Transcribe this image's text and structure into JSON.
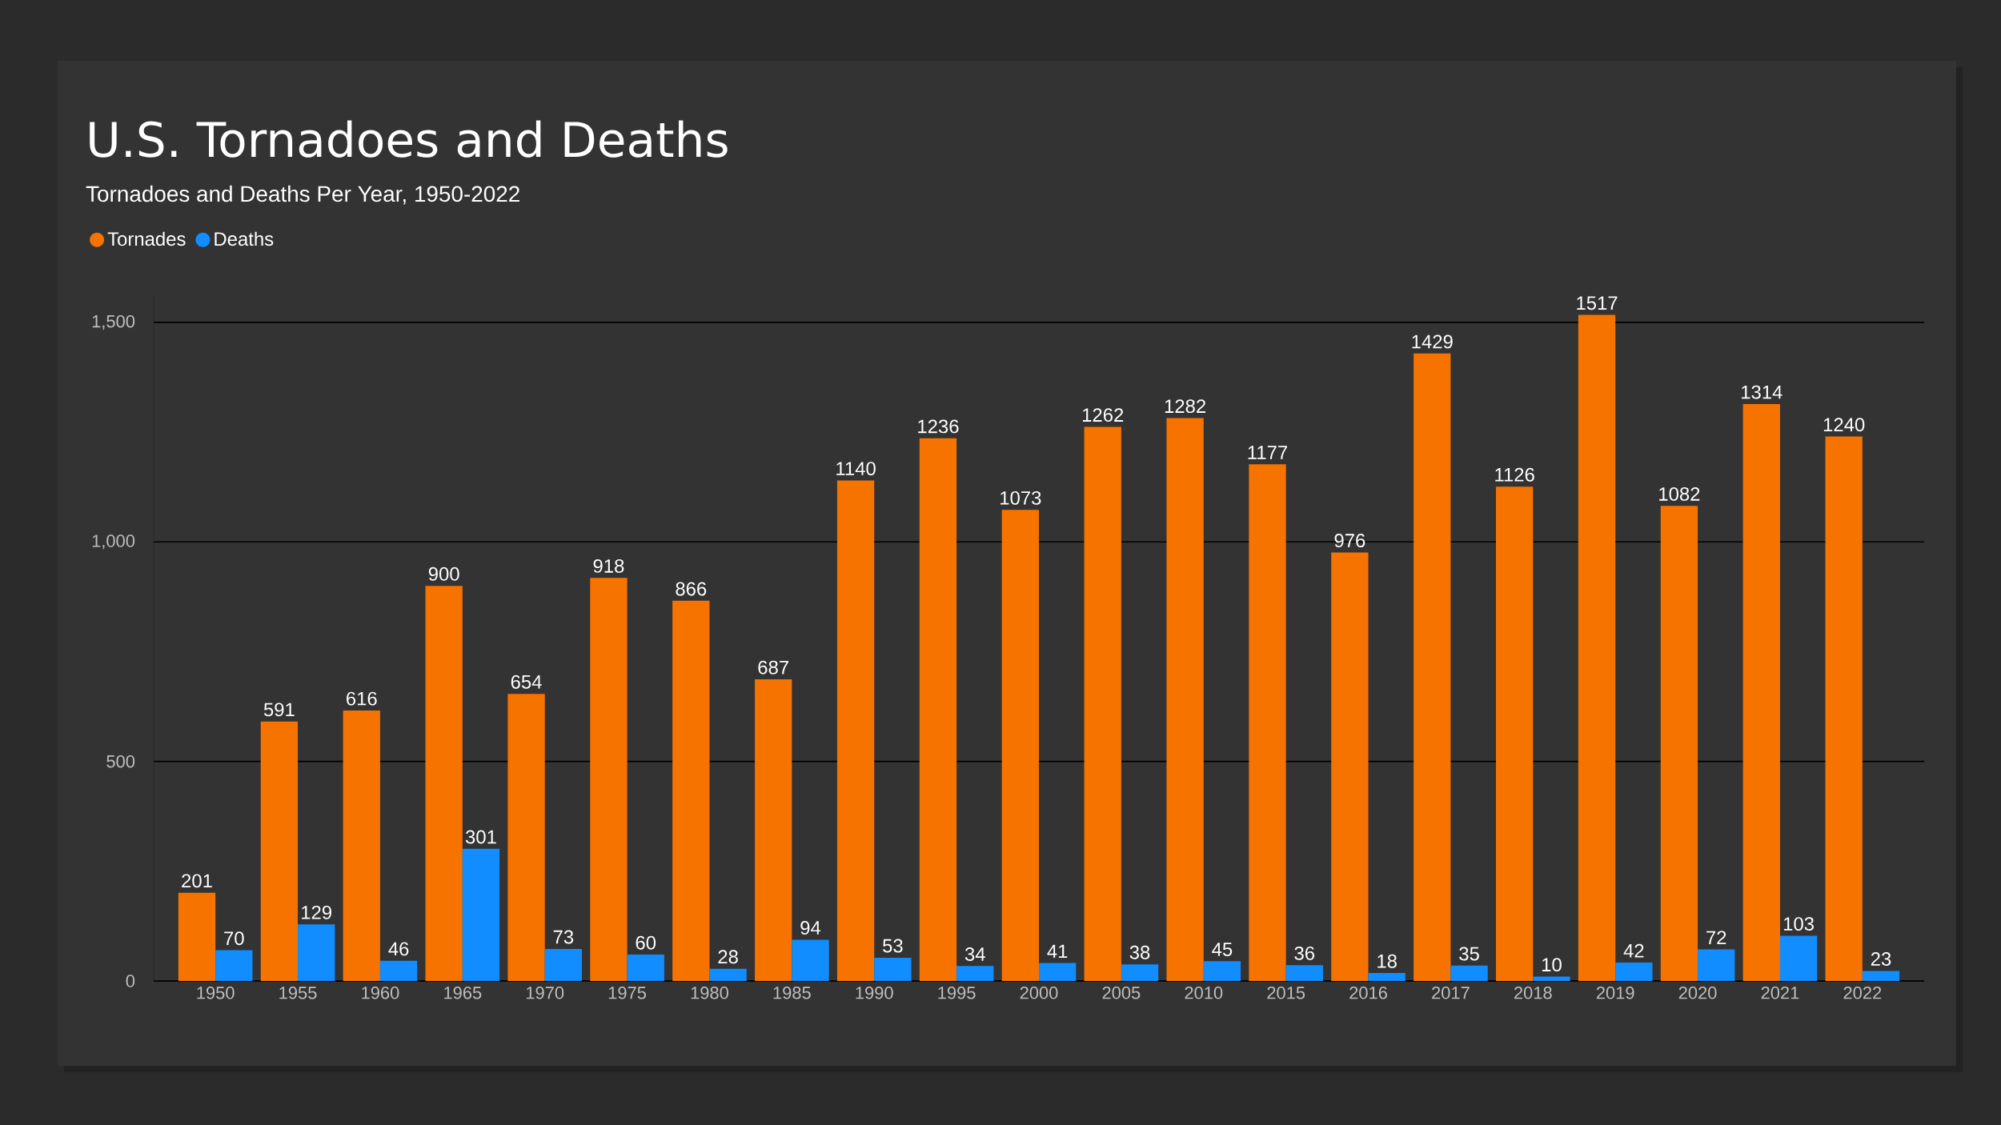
{
  "chart_data": {
    "type": "bar",
    "title": "U.S. Tornadoes and Deaths",
    "subtitle": "Tornadoes and Deaths Per Year, 1950-2022",
    "categories": [
      "1950",
      "1955",
      "1960",
      "1965",
      "1970",
      "1975",
      "1980",
      "1985",
      "1990",
      "1995",
      "2000",
      "2005",
      "2010",
      "2015",
      "2016",
      "2017",
      "2018",
      "2019",
      "2020",
      "2021",
      "2022"
    ],
    "series": [
      {
        "name": "Tornades",
        "color": "#f77300",
        "values": [
          201,
          591,
          616,
          900,
          654,
          918,
          866,
          687,
          1140,
          1236,
          1073,
          1262,
          1282,
          1177,
          976,
          1429,
          1126,
          1517,
          1082,
          1314,
          1240
        ]
      },
      {
        "name": "Deaths",
        "color": "#118dff",
        "values": [
          70,
          129,
          46,
          301,
          73,
          60,
          28,
          94,
          53,
          34,
          41,
          38,
          45,
          36,
          18,
          35,
          10,
          42,
          72,
          103,
          23
        ]
      }
    ],
    "ylim": [
      0,
      1560
    ],
    "yticks": [
      0,
      500,
      {
        "value": 1000,
        "label": "1,000"
      },
      {
        "value": 1500,
        "label": "1,500"
      }
    ],
    "grid": "y",
    "legend": "top left",
    "data_labels": true
  }
}
